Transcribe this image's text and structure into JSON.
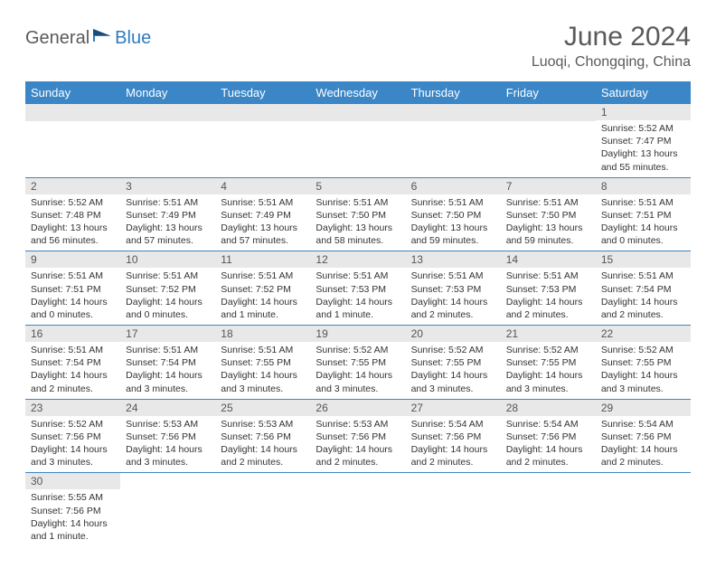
{
  "logo": {
    "text1": "General",
    "text2": "Blue"
  },
  "title": "June 2024",
  "subtitle": "Luoqi, Chongqing, China",
  "colors": {
    "header_bg": "#3b86c6",
    "header_fg": "#ffffff",
    "daynum_bg": "#e8e8e8",
    "border": "#3b86c6",
    "text": "#333333",
    "title": "#5a5a5a",
    "logo_blue": "#2f7bbf"
  },
  "columns": [
    "Sunday",
    "Monday",
    "Tuesday",
    "Wednesday",
    "Thursday",
    "Friday",
    "Saturday"
  ],
  "weeks": [
    [
      null,
      null,
      null,
      null,
      null,
      null,
      {
        "n": "1",
        "sr": "5:52 AM",
        "ss": "7:47 PM",
        "dl": "13 hours and 55 minutes."
      }
    ],
    [
      {
        "n": "2",
        "sr": "5:52 AM",
        "ss": "7:48 PM",
        "dl": "13 hours and 56 minutes."
      },
      {
        "n": "3",
        "sr": "5:51 AM",
        "ss": "7:49 PM",
        "dl": "13 hours and 57 minutes."
      },
      {
        "n": "4",
        "sr": "5:51 AM",
        "ss": "7:49 PM",
        "dl": "13 hours and 57 minutes."
      },
      {
        "n": "5",
        "sr": "5:51 AM",
        "ss": "7:50 PM",
        "dl": "13 hours and 58 minutes."
      },
      {
        "n": "6",
        "sr": "5:51 AM",
        "ss": "7:50 PM",
        "dl": "13 hours and 59 minutes."
      },
      {
        "n": "7",
        "sr": "5:51 AM",
        "ss": "7:50 PM",
        "dl": "13 hours and 59 minutes."
      },
      {
        "n": "8",
        "sr": "5:51 AM",
        "ss": "7:51 PM",
        "dl": "14 hours and 0 minutes."
      }
    ],
    [
      {
        "n": "9",
        "sr": "5:51 AM",
        "ss": "7:51 PM",
        "dl": "14 hours and 0 minutes."
      },
      {
        "n": "10",
        "sr": "5:51 AM",
        "ss": "7:52 PM",
        "dl": "14 hours and 0 minutes."
      },
      {
        "n": "11",
        "sr": "5:51 AM",
        "ss": "7:52 PM",
        "dl": "14 hours and 1 minute."
      },
      {
        "n": "12",
        "sr": "5:51 AM",
        "ss": "7:53 PM",
        "dl": "14 hours and 1 minute."
      },
      {
        "n": "13",
        "sr": "5:51 AM",
        "ss": "7:53 PM",
        "dl": "14 hours and 2 minutes."
      },
      {
        "n": "14",
        "sr": "5:51 AM",
        "ss": "7:53 PM",
        "dl": "14 hours and 2 minutes."
      },
      {
        "n": "15",
        "sr": "5:51 AM",
        "ss": "7:54 PM",
        "dl": "14 hours and 2 minutes."
      }
    ],
    [
      {
        "n": "16",
        "sr": "5:51 AM",
        "ss": "7:54 PM",
        "dl": "14 hours and 2 minutes."
      },
      {
        "n": "17",
        "sr": "5:51 AM",
        "ss": "7:54 PM",
        "dl": "14 hours and 3 minutes."
      },
      {
        "n": "18",
        "sr": "5:51 AM",
        "ss": "7:55 PM",
        "dl": "14 hours and 3 minutes."
      },
      {
        "n": "19",
        "sr": "5:52 AM",
        "ss": "7:55 PM",
        "dl": "14 hours and 3 minutes."
      },
      {
        "n": "20",
        "sr": "5:52 AM",
        "ss": "7:55 PM",
        "dl": "14 hours and 3 minutes."
      },
      {
        "n": "21",
        "sr": "5:52 AM",
        "ss": "7:55 PM",
        "dl": "14 hours and 3 minutes."
      },
      {
        "n": "22",
        "sr": "5:52 AM",
        "ss": "7:55 PM",
        "dl": "14 hours and 3 minutes."
      }
    ],
    [
      {
        "n": "23",
        "sr": "5:52 AM",
        "ss": "7:56 PM",
        "dl": "14 hours and 3 minutes."
      },
      {
        "n": "24",
        "sr": "5:53 AM",
        "ss": "7:56 PM",
        "dl": "14 hours and 3 minutes."
      },
      {
        "n": "25",
        "sr": "5:53 AM",
        "ss": "7:56 PM",
        "dl": "14 hours and 2 minutes."
      },
      {
        "n": "26",
        "sr": "5:53 AM",
        "ss": "7:56 PM",
        "dl": "14 hours and 2 minutes."
      },
      {
        "n": "27",
        "sr": "5:54 AM",
        "ss": "7:56 PM",
        "dl": "14 hours and 2 minutes."
      },
      {
        "n": "28",
        "sr": "5:54 AM",
        "ss": "7:56 PM",
        "dl": "14 hours and 2 minutes."
      },
      {
        "n": "29",
        "sr": "5:54 AM",
        "ss": "7:56 PM",
        "dl": "14 hours and 2 minutes."
      }
    ],
    [
      {
        "n": "30",
        "sr": "5:55 AM",
        "ss": "7:56 PM",
        "dl": "14 hours and 1 minute."
      },
      null,
      null,
      null,
      null,
      null,
      null
    ]
  ],
  "labels": {
    "sunrise": "Sunrise:",
    "sunset": "Sunset:",
    "daylight": "Daylight:"
  }
}
